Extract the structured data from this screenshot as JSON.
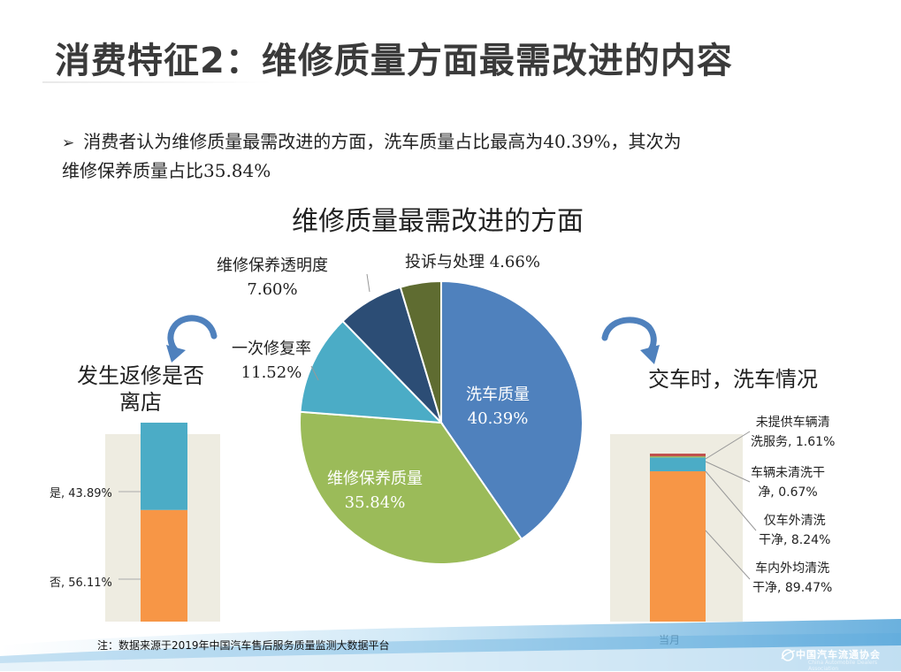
{
  "title": "消费特征2：维修质量方面最需改进的内容",
  "bullet": {
    "line1": "消费者认为维修质量最需改进的方面，洗车质量占比最高为40.39%，其次为",
    "line2": "维修保养质量占比35.84%"
  },
  "footnote": "注：数据来源于2019年中国汽车售后服务质量监测大数据平台",
  "logo": {
    "name": "中国汽车流通协会",
    "sub": "China Automobile Dealers Association"
  },
  "chart_data": [
    {
      "type": "pie",
      "title": "维修质量最需改进的方面",
      "categories": [
        "洗车质量",
        "维修保养质量",
        "一次修复率",
        "维修保养透明度",
        "投诉与处理"
      ],
      "values": [
        40.39,
        35.84,
        11.52,
        7.6,
        4.66
      ],
      "value_labels": [
        "40.39%",
        "35.84%",
        "11.52%",
        "7.60%",
        "4.66%"
      ],
      "colors": [
        "#4f81bd",
        "#9bbb59",
        "#4bacc6",
        "#2c4d75",
        "#5f6c31"
      ]
    },
    {
      "type": "bar",
      "stacked": true,
      "title": "发生返修是否离店",
      "series": [
        {
          "name": "否",
          "values": [
            56.11
          ],
          "label": "否, 56.11%",
          "color": "#f79646"
        },
        {
          "name": "是",
          "values": [
            43.89
          ],
          "label": "是, 43.89%",
          "color": "#4bacc6"
        }
      ],
      "ylim": [
        0,
        100
      ]
    },
    {
      "type": "bar",
      "stacked": true,
      "title": "交车时，洗车情况",
      "category_label": "当月",
      "series": [
        {
          "name": "车内外均清洗干净",
          "values": [
            89.47
          ],
          "label_lines": [
            "车内外均清洗",
            "干净, 89.47%"
          ],
          "color": "#f79646"
        },
        {
          "name": "仅车外清洗干净",
          "values": [
            8.24
          ],
          "label_lines": [
            "仅车外清洗",
            "干净, 8.24%"
          ],
          "color": "#4bacc6"
        },
        {
          "name": "车辆未清洗干净",
          "values": [
            0.67
          ],
          "label_lines": [
            "车辆未清洗干",
            "净, 0.67%"
          ],
          "color": "#9bbb59"
        },
        {
          "name": "未提供车辆清洗服务",
          "values": [
            1.61
          ],
          "label_lines": [
            "未提供车辆清",
            "洗服务, 1.61%"
          ],
          "color": "#c0504d"
        }
      ],
      "ylim": [
        0,
        100
      ]
    }
  ]
}
